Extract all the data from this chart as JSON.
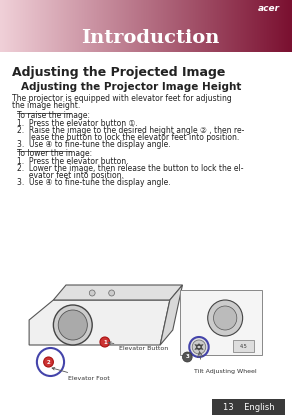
{
  "page_bg": "#ffffff",
  "header_bg_dark": "#7a1030",
  "header_bg_light": "#f0d0d8",
  "header_title": "Introduction",
  "header_title_color": "#ffffff",
  "header_title_fontsize": 14,
  "section_title": "Adjusting the Projected Image",
  "section_title_fontsize": 9,
  "subsection_title": "Adjusting the Projector Image Height",
  "subsection_title_fontsize": 7.5,
  "body_fontsize": 5.5,
  "body_color": "#222222",
  "underline_color": "#222222",
  "footer_bg": "#3a3a3a",
  "footer_text": "13    English",
  "footer_text_color": "#ffffff",
  "footer_fontsize": 6,
  "body_text": [
    "The projector is equipped with elevator feet for adjusting",
    "the image height."
  ],
  "raise_heading": "To raise the image:",
  "raise_steps": [
    "1.  Press the elevator button ①.",
    "2.  Raise the image to the desired height angle ② , then re-\n     lease the button to lock the elevator feet into position.",
    "3.  Use ④ to fine-tune the display angle."
  ],
  "lower_heading": "To lower the image:",
  "lower_steps": [
    "1.  Press the elevator button.",
    "2.  Lower the image, then release the button to lock the el-\n     evator feet into position.",
    "3.  Use ④ to fine-tune the display angle."
  ],
  "label1": "Elevator Button",
  "label2": "Elevator Foot",
  "label3": "Tilt Adjusting Wheel"
}
